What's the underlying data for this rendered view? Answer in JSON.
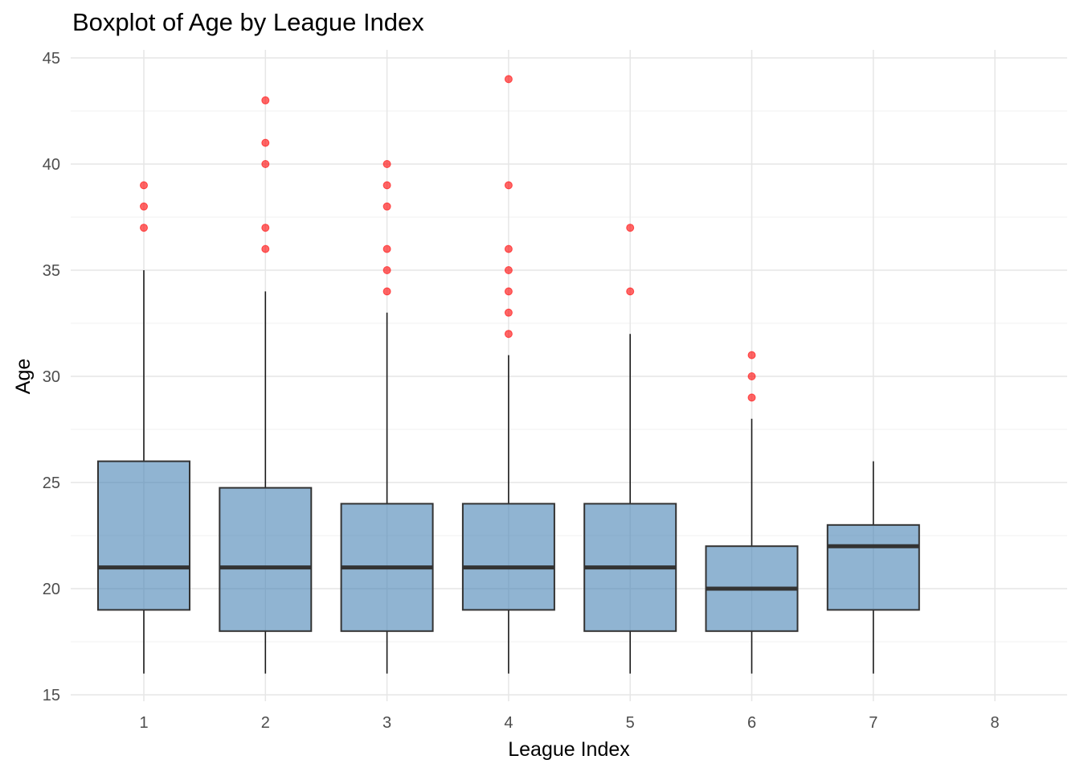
{
  "chart_data": {
    "type": "boxplot",
    "title": "Boxplot of Age by League Index",
    "xlabel": "League Index",
    "ylabel": "Age",
    "categories": [
      "1",
      "2",
      "3",
      "4",
      "5",
      "6",
      "7",
      "8"
    ],
    "ylim": [
      15,
      45
    ],
    "y_ticks": [
      15,
      20,
      25,
      30,
      35,
      40,
      45
    ],
    "grid": true,
    "box_fill": "#4682B4",
    "box_fill_opacity": 0.6,
    "box_stroke": "#333333",
    "outlier_color": "#FF0000",
    "boxes": [
      {
        "category": "1",
        "whisker_low": 16,
        "q1": 19,
        "median": 21,
        "q3": 26,
        "whisker_high": 35,
        "outliers": [
          37,
          38,
          39
        ]
      },
      {
        "category": "2",
        "whisker_low": 16,
        "q1": 18,
        "median": 21,
        "q3": 24.75,
        "whisker_high": 34,
        "outliers": [
          36,
          37,
          40,
          41,
          43
        ]
      },
      {
        "category": "3",
        "whisker_low": 16,
        "q1": 18,
        "median": 21,
        "q3": 24,
        "whisker_high": 33,
        "outliers": [
          34,
          35,
          36,
          38,
          39,
          40
        ]
      },
      {
        "category": "4",
        "whisker_low": 16,
        "q1": 19,
        "median": 21,
        "q3": 24,
        "whisker_high": 31,
        "outliers": [
          32,
          33,
          34,
          35,
          36,
          39,
          44
        ]
      },
      {
        "category": "5",
        "whisker_low": 16,
        "q1": 18,
        "median": 21,
        "q3": 24,
        "whisker_high": 32,
        "outliers": [
          34,
          37
        ]
      },
      {
        "category": "6",
        "whisker_low": 16,
        "q1": 18,
        "median": 20,
        "q3": 22,
        "whisker_high": 28,
        "outliers": [
          29,
          30,
          31
        ]
      },
      {
        "category": "7",
        "whisker_low": 16,
        "q1": 19,
        "median": 22,
        "q3": 23,
        "whisker_high": 26,
        "outliers": []
      }
    ]
  }
}
